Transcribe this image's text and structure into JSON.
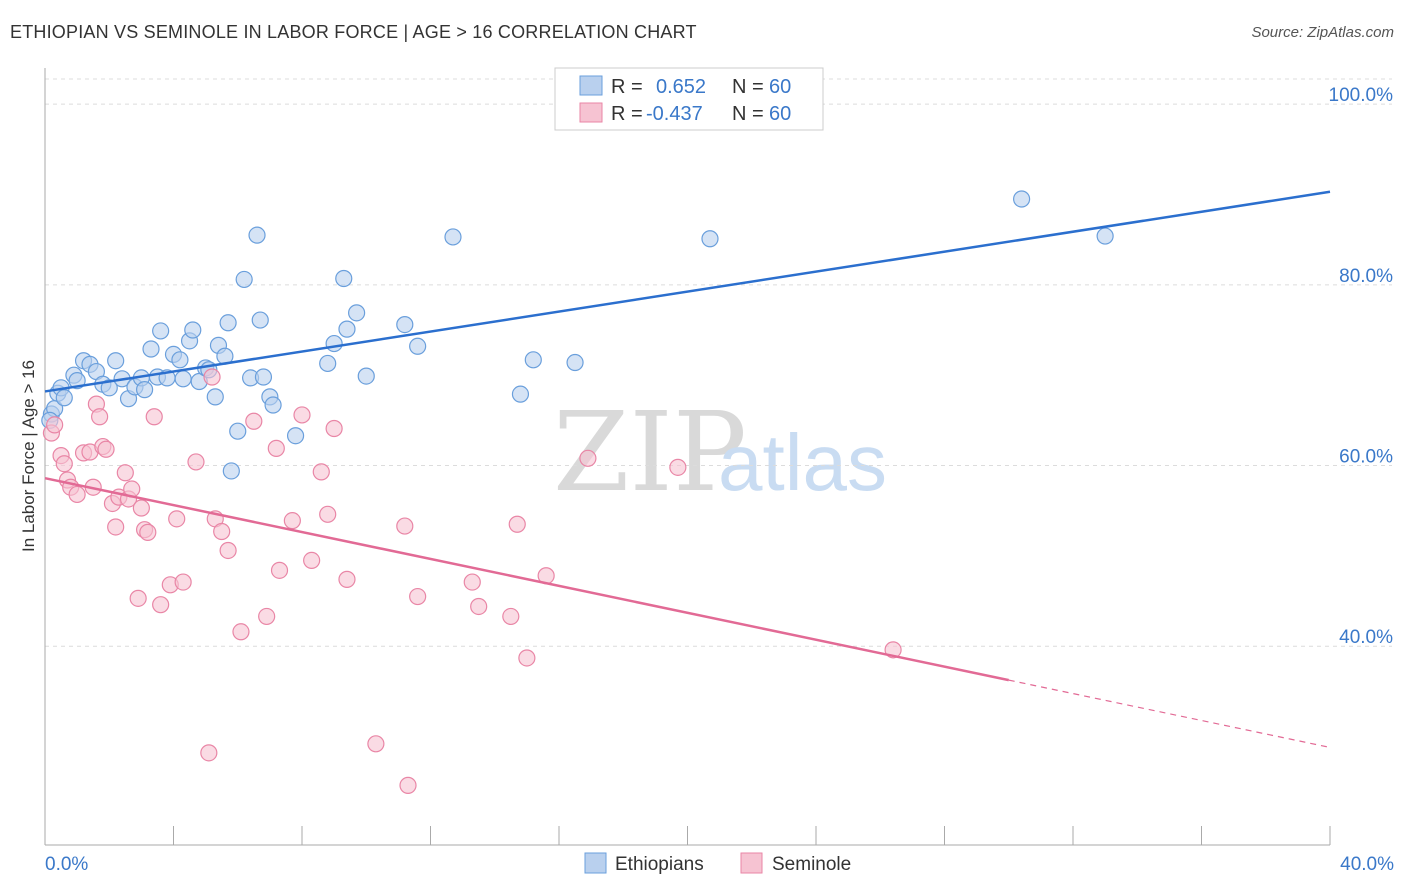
{
  "title": "ETHIOPIAN VS SEMINOLE IN LABOR FORCE | AGE > 16 CORRELATION CHART",
  "source": "Source: ZipAtlas.com",
  "watermark": {
    "zip": "ZIP",
    "atlas": "atlas"
  },
  "colors": {
    "blue_fill": "#b9d0ee",
    "blue_stroke": "#6a9fdc",
    "blue_line": "#2b6fce",
    "pink_fill": "#f6c3d2",
    "pink_stroke": "#e986a6",
    "pink_line": "#e26a95"
  },
  "legend": {
    "rows": [
      {
        "r_label": "R =",
        "r_value": "0.652",
        "n_label": "N =",
        "n_value": "60"
      },
      {
        "r_label": "R =",
        "r_value": "-0.437",
        "n_label": "N =",
        "n_value": "60"
      }
    ],
    "bottom": [
      "Ethiopians",
      "Seminole"
    ]
  },
  "chart_data": {
    "type": "scatter",
    "title": "ETHIOPIAN VS SEMINOLE IN LABOR FORCE | AGE > 16 CORRELATION CHART",
    "xlabel": "",
    "ylabel": "In Labor Force | Age > 16",
    "xlim": [
      0,
      40
    ],
    "ylim": [
      18,
      104
    ],
    "x_tick_labels": [
      "0.0%",
      "40.0%"
    ],
    "y_ticks": [
      40,
      60,
      80,
      100
    ],
    "y_tick_labels": [
      "40.0%",
      "60.0%",
      "80.0%",
      "100.0%"
    ],
    "grid": true,
    "legend_position": "top-center",
    "series": [
      {
        "name": "Ethiopians",
        "r": 0.652,
        "n": 60,
        "trend": {
          "x": [
            0,
            40
          ],
          "y": [
            68.2,
            90.3
          ],
          "dashed_from": null
        },
        "points": [
          [
            0.2,
            65.7
          ],
          [
            0.3,
            66.3
          ],
          [
            0.4,
            68.0
          ],
          [
            0.5,
            68.6
          ],
          [
            0.6,
            67.5
          ],
          [
            0.9,
            70.0
          ],
          [
            1.0,
            69.4
          ],
          [
            1.2,
            71.6
          ],
          [
            1.4,
            71.2
          ],
          [
            1.6,
            70.4
          ],
          [
            1.8,
            69.0
          ],
          [
            2.0,
            68.6
          ],
          [
            2.2,
            71.6
          ],
          [
            2.4,
            69.6
          ],
          [
            2.6,
            67.4
          ],
          [
            2.8,
            68.7
          ],
          [
            3.0,
            69.7
          ],
          [
            3.1,
            68.4
          ],
          [
            3.3,
            72.9
          ],
          [
            3.5,
            69.8
          ],
          [
            3.6,
            74.9
          ],
          [
            3.8,
            69.7
          ],
          [
            4.0,
            72.3
          ],
          [
            4.2,
            71.7
          ],
          [
            4.3,
            69.6
          ],
          [
            4.5,
            73.8
          ],
          [
            4.6,
            75.0
          ],
          [
            4.8,
            69.3
          ],
          [
            5.0,
            70.8
          ],
          [
            5.1,
            70.6
          ],
          [
            5.3,
            67.6
          ],
          [
            5.4,
            73.3
          ],
          [
            5.6,
            72.1
          ],
          [
            5.7,
            75.8
          ],
          [
            5.8,
            59.4
          ],
          [
            6.0,
            63.8
          ],
          [
            6.2,
            80.6
          ],
          [
            6.4,
            69.7
          ],
          [
            6.6,
            85.5
          ],
          [
            6.7,
            76.1
          ],
          [
            6.8,
            69.8
          ],
          [
            7.0,
            67.6
          ],
          [
            7.1,
            66.7
          ],
          [
            7.8,
            63.3
          ],
          [
            8.8,
            71.3
          ],
          [
            9.0,
            73.5
          ],
          [
            9.3,
            80.7
          ],
          [
            9.4,
            75.1
          ],
          [
            9.7,
            76.9
          ],
          [
            10.0,
            69.9
          ],
          [
            11.2,
            75.6
          ],
          [
            11.6,
            73.2
          ],
          [
            12.7,
            85.3
          ],
          [
            14.8,
            67.9
          ],
          [
            15.2,
            71.7
          ],
          [
            16.5,
            71.4
          ],
          [
            20.7,
            85.1
          ],
          [
            30.4,
            89.5
          ],
          [
            33.0,
            85.4
          ],
          [
            0.15,
            65.0
          ]
        ]
      },
      {
        "name": "Seminole",
        "r": -0.437,
        "n": 60,
        "trend": {
          "x": [
            0,
            40
          ],
          "y": [
            58.6,
            28.8
          ],
          "dashed_from": 30.0
        },
        "points": [
          [
            0.2,
            63.6
          ],
          [
            0.3,
            64.5
          ],
          [
            0.5,
            61.1
          ],
          [
            0.6,
            60.2
          ],
          [
            0.7,
            58.4
          ],
          [
            0.8,
            57.6
          ],
          [
            1.0,
            56.8
          ],
          [
            1.2,
            61.4
          ],
          [
            1.4,
            61.5
          ],
          [
            1.5,
            57.6
          ],
          [
            1.6,
            66.8
          ],
          [
            1.7,
            65.4
          ],
          [
            1.8,
            62.1
          ],
          [
            1.9,
            61.8
          ],
          [
            2.1,
            55.8
          ],
          [
            2.2,
            53.2
          ],
          [
            2.3,
            56.5
          ],
          [
            2.5,
            59.2
          ],
          [
            2.6,
            56.3
          ],
          [
            2.7,
            57.4
          ],
          [
            2.9,
            45.3
          ],
          [
            3.0,
            55.3
          ],
          [
            3.1,
            52.9
          ],
          [
            3.2,
            52.6
          ],
          [
            3.4,
            65.4
          ],
          [
            3.6,
            44.6
          ],
          [
            3.9,
            46.8
          ],
          [
            4.1,
            54.1
          ],
          [
            4.3,
            47.1
          ],
          [
            4.7,
            60.4
          ],
          [
            5.1,
            28.2
          ],
          [
            5.2,
            69.8
          ],
          [
            5.3,
            54.1
          ],
          [
            5.5,
            52.7
          ],
          [
            5.7,
            50.6
          ],
          [
            6.1,
            41.6
          ],
          [
            6.5,
            64.9
          ],
          [
            6.9,
            43.3
          ],
          [
            7.2,
            61.9
          ],
          [
            7.3,
            48.4
          ],
          [
            7.7,
            53.9
          ],
          [
            8.0,
            65.6
          ],
          [
            8.3,
            49.5
          ],
          [
            8.6,
            59.3
          ],
          [
            8.8,
            54.6
          ],
          [
            9.0,
            64.1
          ],
          [
            9.4,
            47.4
          ],
          [
            10.3,
            29.2
          ],
          [
            11.2,
            53.3
          ],
          [
            11.3,
            24.6
          ],
          [
            11.6,
            45.5
          ],
          [
            13.3,
            47.1
          ],
          [
            13.5,
            44.4
          ],
          [
            14.5,
            43.3
          ],
          [
            14.7,
            53.5
          ],
          [
            15.0,
            38.7
          ],
          [
            15.6,
            47.8
          ],
          [
            16.9,
            60.8
          ],
          [
            19.7,
            59.8
          ],
          [
            26.4,
            39.6
          ]
        ]
      }
    ]
  }
}
